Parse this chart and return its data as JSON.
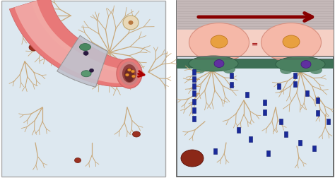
{
  "bg_color": "#ffffff",
  "left_bg": "#dde8f0",
  "right_bg": "#dde8f0",
  "left_border": "#aaaaaa",
  "right_border": "#555555",
  "vessel_outer": "#e87878",
  "vessel_mid": "#f0a0a0",
  "vessel_highlight": "#f8c8c0",
  "vessel_wall": "#d06868",
  "vessel_lumen": "#9a5050",
  "vessel_dark": "#7a3838",
  "branch_color": "#c8a87a",
  "branch_edge": "#b89060",
  "tj_color": "#c0c0cc",
  "tj_edge": "#909090",
  "green1": "#4a8860",
  "green2": "#3a6a50",
  "green3": "#5a9870",
  "nucleus_dark": "#2a1840",
  "nucleus_dark2": "#1a1030",
  "blood_cell": "#9b3020",
  "blood_cell_edge": "#6a1808",
  "arrow_red": "#aa0000",
  "orange_dot": "#e89030",
  "orange_dot_edge": "#b86818",
  "right_top_bg": "#c8bebe",
  "right_stripe": "#b8aeae",
  "right_pink_bg": "#f0d8d0",
  "right_cell_fill": "#f5b8a8",
  "right_cell_edge": "#d898888",
  "right_nucleus": "#e8a040",
  "right_nucleus_edge": "#c07820",
  "right_green_layer": "#3a6a50",
  "right_pericyte": "#4a8860",
  "right_pericyte_edge": "#2a5838",
  "purple_nucleus": "#6030a0",
  "purple_edge": "#401878",
  "blue_marker": "#1a2a99",
  "blue_marker_edge": "#0a1870",
  "brown_cell": "#8b2818",
  "brown_cell_edge": "#5a1008",
  "equal_color": "#aa2020"
}
